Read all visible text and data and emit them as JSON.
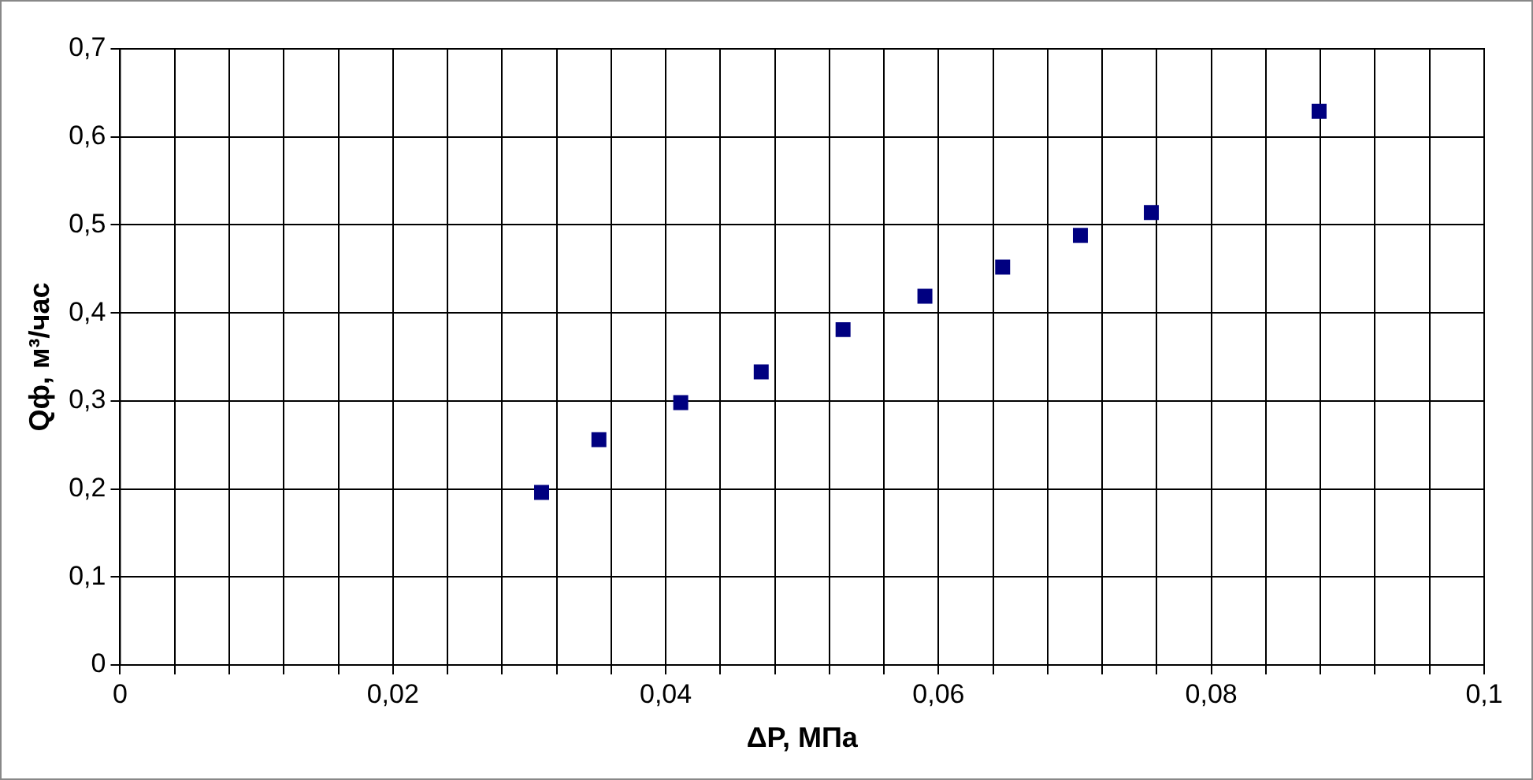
{
  "chart_data": {
    "type": "scatter",
    "xlabel": "ΔP, МПа",
    "ylabel": "Qф, м³/час",
    "x": [
      0.0309,
      0.0351,
      0.0411,
      0.047,
      0.053,
      0.059,
      0.0647,
      0.0704,
      0.0756,
      0.0879
    ],
    "series": [
      {
        "color": "#000080",
        "values": [
          0.196,
          0.256,
          0.298,
          0.333,
          0.381,
          0.419,
          0.452,
          0.488,
          0.514,
          0.629
        ]
      }
    ],
    "xlim": [
      0,
      0.1
    ],
    "xticks": [
      {
        "value": 0,
        "label": "0"
      },
      {
        "value": 0.004,
        "label": null
      },
      {
        "value": 0.008,
        "label": null
      },
      {
        "value": 0.012,
        "label": null
      },
      {
        "value": 0.016,
        "label": null
      },
      {
        "value": 0.02,
        "label": "0,02"
      },
      {
        "value": 0.024,
        "label": null
      },
      {
        "value": 0.028,
        "label": null
      },
      {
        "value": 0.032,
        "label": null
      },
      {
        "value": 0.036,
        "label": null
      },
      {
        "value": 0.04,
        "label": "0,04"
      },
      {
        "value": 0.044,
        "label": null
      },
      {
        "value": 0.048,
        "label": null
      },
      {
        "value": 0.052,
        "label": null
      },
      {
        "value": 0.056,
        "label": null
      },
      {
        "value": 0.06,
        "label": "0,06"
      },
      {
        "value": 0.064,
        "label": null
      },
      {
        "value": 0.068,
        "label": null
      },
      {
        "value": 0.072,
        "label": null
      },
      {
        "value": 0.076,
        "label": null
      },
      {
        "value": 0.08,
        "label": "0,08"
      },
      {
        "value": 0.084,
        "label": null
      },
      {
        "value": 0.088,
        "label": null
      },
      {
        "value": 0.092,
        "label": null
      },
      {
        "value": 0.096,
        "label": null
      },
      {
        "value": 0.1,
        "label": "0,1"
      }
    ],
    "ylim": [
      0,
      0.7
    ],
    "yticks": [
      {
        "value": 0,
        "label": "0"
      },
      {
        "value": 0.1,
        "label": "0,1"
      },
      {
        "value": 0.2,
        "label": "0,2"
      },
      {
        "value": 0.3,
        "label": "0,3"
      },
      {
        "value": 0.4,
        "label": "0,4"
      },
      {
        "value": 0.5,
        "label": "0,5"
      },
      {
        "value": 0.6,
        "label": "0,6"
      },
      {
        "value": 0.7,
        "label": "0,7"
      }
    ],
    "grid": true,
    "legend": false,
    "marker": "square"
  }
}
